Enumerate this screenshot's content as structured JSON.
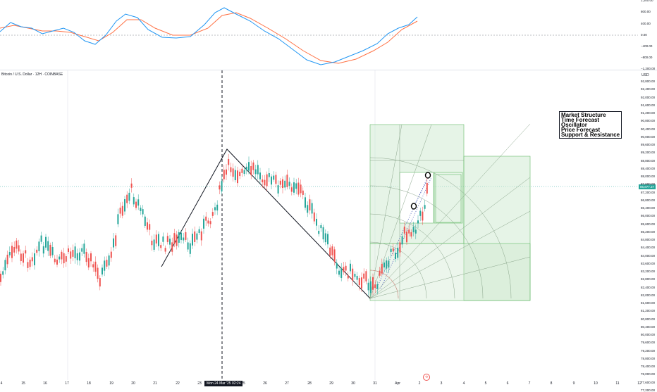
{
  "chart": {
    "symbol_title": "Bitcoin / U.S. Dollar · 12H · COINBASE",
    "currency_label": "USD",
    "current_price": "86,877.37",
    "crosshair_time": "Mon 24 Mar '25   02:24",
    "accent_up": "#26a69a",
    "accent_down": "#ef5350",
    "fib_fill": "#c8e6c9",
    "fib_stroke": "#66bb6a"
  },
  "oscillator": {
    "y_ticks": [
      "1,200.00",
      "800.00",
      "400.00",
      "0.00",
      "−400.00",
      "−800.00",
      "−1,200.00"
    ],
    "macd_color": "#2196f3",
    "signal_color": "#ff7043"
  },
  "legend": {
    "items": [
      "Market Structure",
      "Time Forecast",
      "Oscillator",
      "Price Forecast",
      "Support & Resistance"
    ]
  },
  "price_axis": {
    "ticks": [
      "92,800.00",
      "92,400.00",
      "92,000.00",
      "91,600.00",
      "91,200.00",
      "90,800.00",
      "90,400.00",
      "90,000.00",
      "89,600.00",
      "89,200.00",
      "88,800.00",
      "88,400.00",
      "88,000.00",
      "87,600.00",
      "87,200.00",
      "86,800.00",
      "86,400.00",
      "86,000.00",
      "85,600.00",
      "85,200.00",
      "84,800.00",
      "84,400.00",
      "84,000.00",
      "83,600.00",
      "83,200.00",
      "82,800.00",
      "82,400.00",
      "82,000.00",
      "81,600.00",
      "81,200.00",
      "80,800.00",
      "80,400.00",
      "80,000.00",
      "79,600.00",
      "79,200.00",
      "78,800.00",
      "78,400.00",
      "78,000.00",
      "77,600.00",
      "77,200.00"
    ]
  },
  "time_axis": {
    "labels": [
      "4",
      "15",
      "16",
      "17",
      "18",
      "19",
      "20",
      "21",
      "22",
      "23",
      "25",
      "26",
      "27",
      "28",
      "29",
      "30",
      "31",
      "Apr",
      "2",
      "3",
      "4",
      "5",
      "6",
      "7",
      "8",
      "9",
      "10",
      "11",
      "12"
    ]
  }
}
